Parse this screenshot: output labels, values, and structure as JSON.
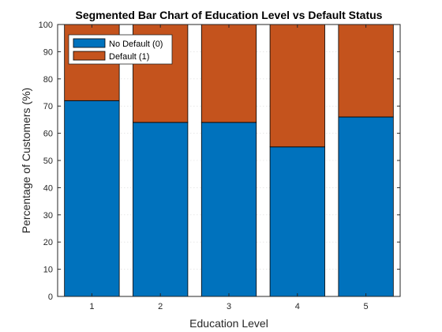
{
  "chart_data": {
    "type": "bar",
    "stacked": true,
    "title": "Segmented Bar Chart of Education Level vs Default Status",
    "xlabel": "Education Level",
    "ylabel": "Percentage of Customers (%)",
    "categories": [
      "1",
      "2",
      "3",
      "4",
      "5"
    ],
    "ylim": [
      0,
      100
    ],
    "yticks": [
      0,
      10,
      20,
      30,
      40,
      50,
      60,
      70,
      80,
      90,
      100
    ],
    "grid": true,
    "legend_position": "top-left",
    "series": [
      {
        "name": "No Default (0)",
        "color": "#0072BD",
        "values": [
          72,
          64,
          64,
          55,
          66
        ]
      },
      {
        "name": "Default (1)",
        "color": "#C4531D",
        "values": [
          28,
          36,
          36,
          45,
          34
        ]
      }
    ]
  }
}
